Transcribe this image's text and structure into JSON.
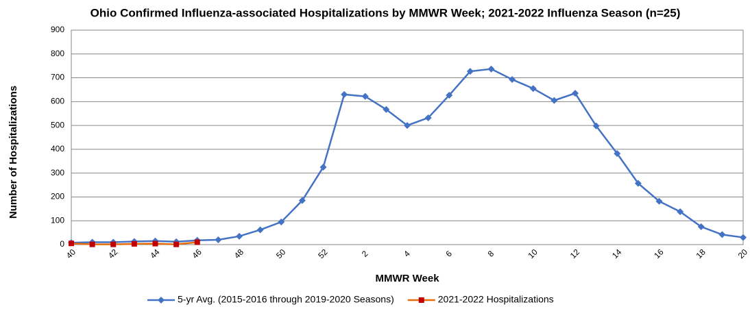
{
  "chart_data": {
    "type": "line",
    "title": "Ohio Confirmed Influenza-associated Hospitalizations by MMWR Week; 2021-2022 Influenza Season (n=25)",
    "x_label": "MMWR Week",
    "y_label": "Number of Hospitalizations",
    "categories": [
      "40",
      null,
      "42",
      null,
      "44",
      null,
      "46",
      null,
      "48",
      null,
      "50",
      null,
      "52",
      null,
      "2",
      null,
      "4",
      null,
      "6",
      null,
      "8",
      null,
      "10",
      null,
      "12",
      null,
      "14",
      null,
      "16",
      null,
      "18",
      null,
      "20"
    ],
    "series": [
      {
        "name": "5-yr Avg. (2015-2016 through 2019-2020 Seasons)",
        "color": "#4472c4",
        "marker": "diamond",
        "values": [
          8,
          10,
          10,
          13,
          15,
          12,
          18,
          20,
          35,
          62,
          95,
          185,
          325,
          630,
          622,
          567,
          500,
          532,
          627,
          727,
          737,
          693,
          655,
          605,
          635,
          498,
          382,
          257,
          182,
          138,
          75,
          42,
          30
        ]
      },
      {
        "name": "2021-2022 Hospitalizations",
        "color": "#e46c0a",
        "marker_color": "#c00000",
        "marker": "square",
        "values": [
          5,
          1,
          1,
          3,
          4,
          1,
          10,
          null,
          null,
          null,
          null,
          null,
          null,
          null,
          null,
          null,
          null,
          null,
          null,
          null,
          null,
          null,
          null,
          null,
          null,
          null,
          null,
          null,
          null,
          null,
          null,
          null,
          null
        ]
      }
    ],
    "ylim": [
      0,
      900
    ],
    "yticks": [
      0,
      100,
      200,
      300,
      400,
      500,
      600,
      700,
      800,
      900
    ],
    "grid": true
  }
}
